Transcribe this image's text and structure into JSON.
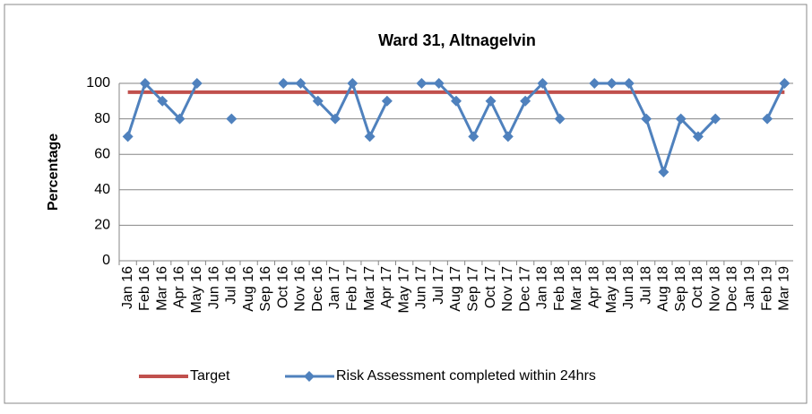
{
  "chart_data": {
    "type": "line",
    "title": "Ward 31, Altnagelvin",
    "y_label": "Percentage",
    "categories": [
      "Jan 16",
      "Feb 16",
      "Mar 16",
      "Apr 16",
      "May 16",
      "Jun 16",
      "Jul 16",
      "Aug 16",
      "Sep 16",
      "Oct 16",
      "Nov 16",
      "Dec 16",
      "Jan 17",
      "Feb 17",
      "Mar 17",
      "Apr 17",
      "May 17",
      "Jun 17",
      "Jul 17",
      "Aug 17",
      "Sep 17",
      "Oct 17",
      "Nov 17",
      "Dec 17",
      "Jan 18",
      "Feb 18",
      "Mar 18",
      "Apr 18",
      "May 18",
      "Jun 18",
      "Jul 18",
      "Aug 18",
      "Sep 18",
      "Oct 18",
      "Nov 18",
      "Dec 18",
      "Jan 19",
      "Feb 19",
      "Mar 19"
    ],
    "series": [
      {
        "name": "Target",
        "color": "#c0504d",
        "values": [
          95,
          95,
          95,
          95,
          95,
          95,
          95,
          95,
          95,
          95,
          95,
          95,
          95,
          95,
          95,
          95,
          95,
          95,
          95,
          95,
          95,
          95,
          95,
          95,
          95,
          95,
          95,
          95,
          95,
          95,
          95,
          95,
          95,
          95,
          95,
          95,
          95,
          95,
          95
        ]
      },
      {
        "name": "Risk Assessment completed within 24hrs",
        "color": "#4f81bd",
        "marker": "diamond",
        "values": [
          70,
          100,
          90,
          80,
          100,
          null,
          80,
          null,
          null,
          100,
          100,
          90,
          80,
          100,
          70,
          90,
          null,
          100,
          100,
          90,
          70,
          90,
          70,
          90,
          100,
          80,
          null,
          100,
          100,
          100,
          80,
          50,
          80,
          70,
          80,
          null,
          null,
          80,
          100
        ]
      }
    ],
    "ylim": [
      0,
      100
    ],
    "yticks": [
      0,
      20,
      40,
      60,
      80,
      100
    ],
    "grid": true,
    "legend": "bottom"
  }
}
